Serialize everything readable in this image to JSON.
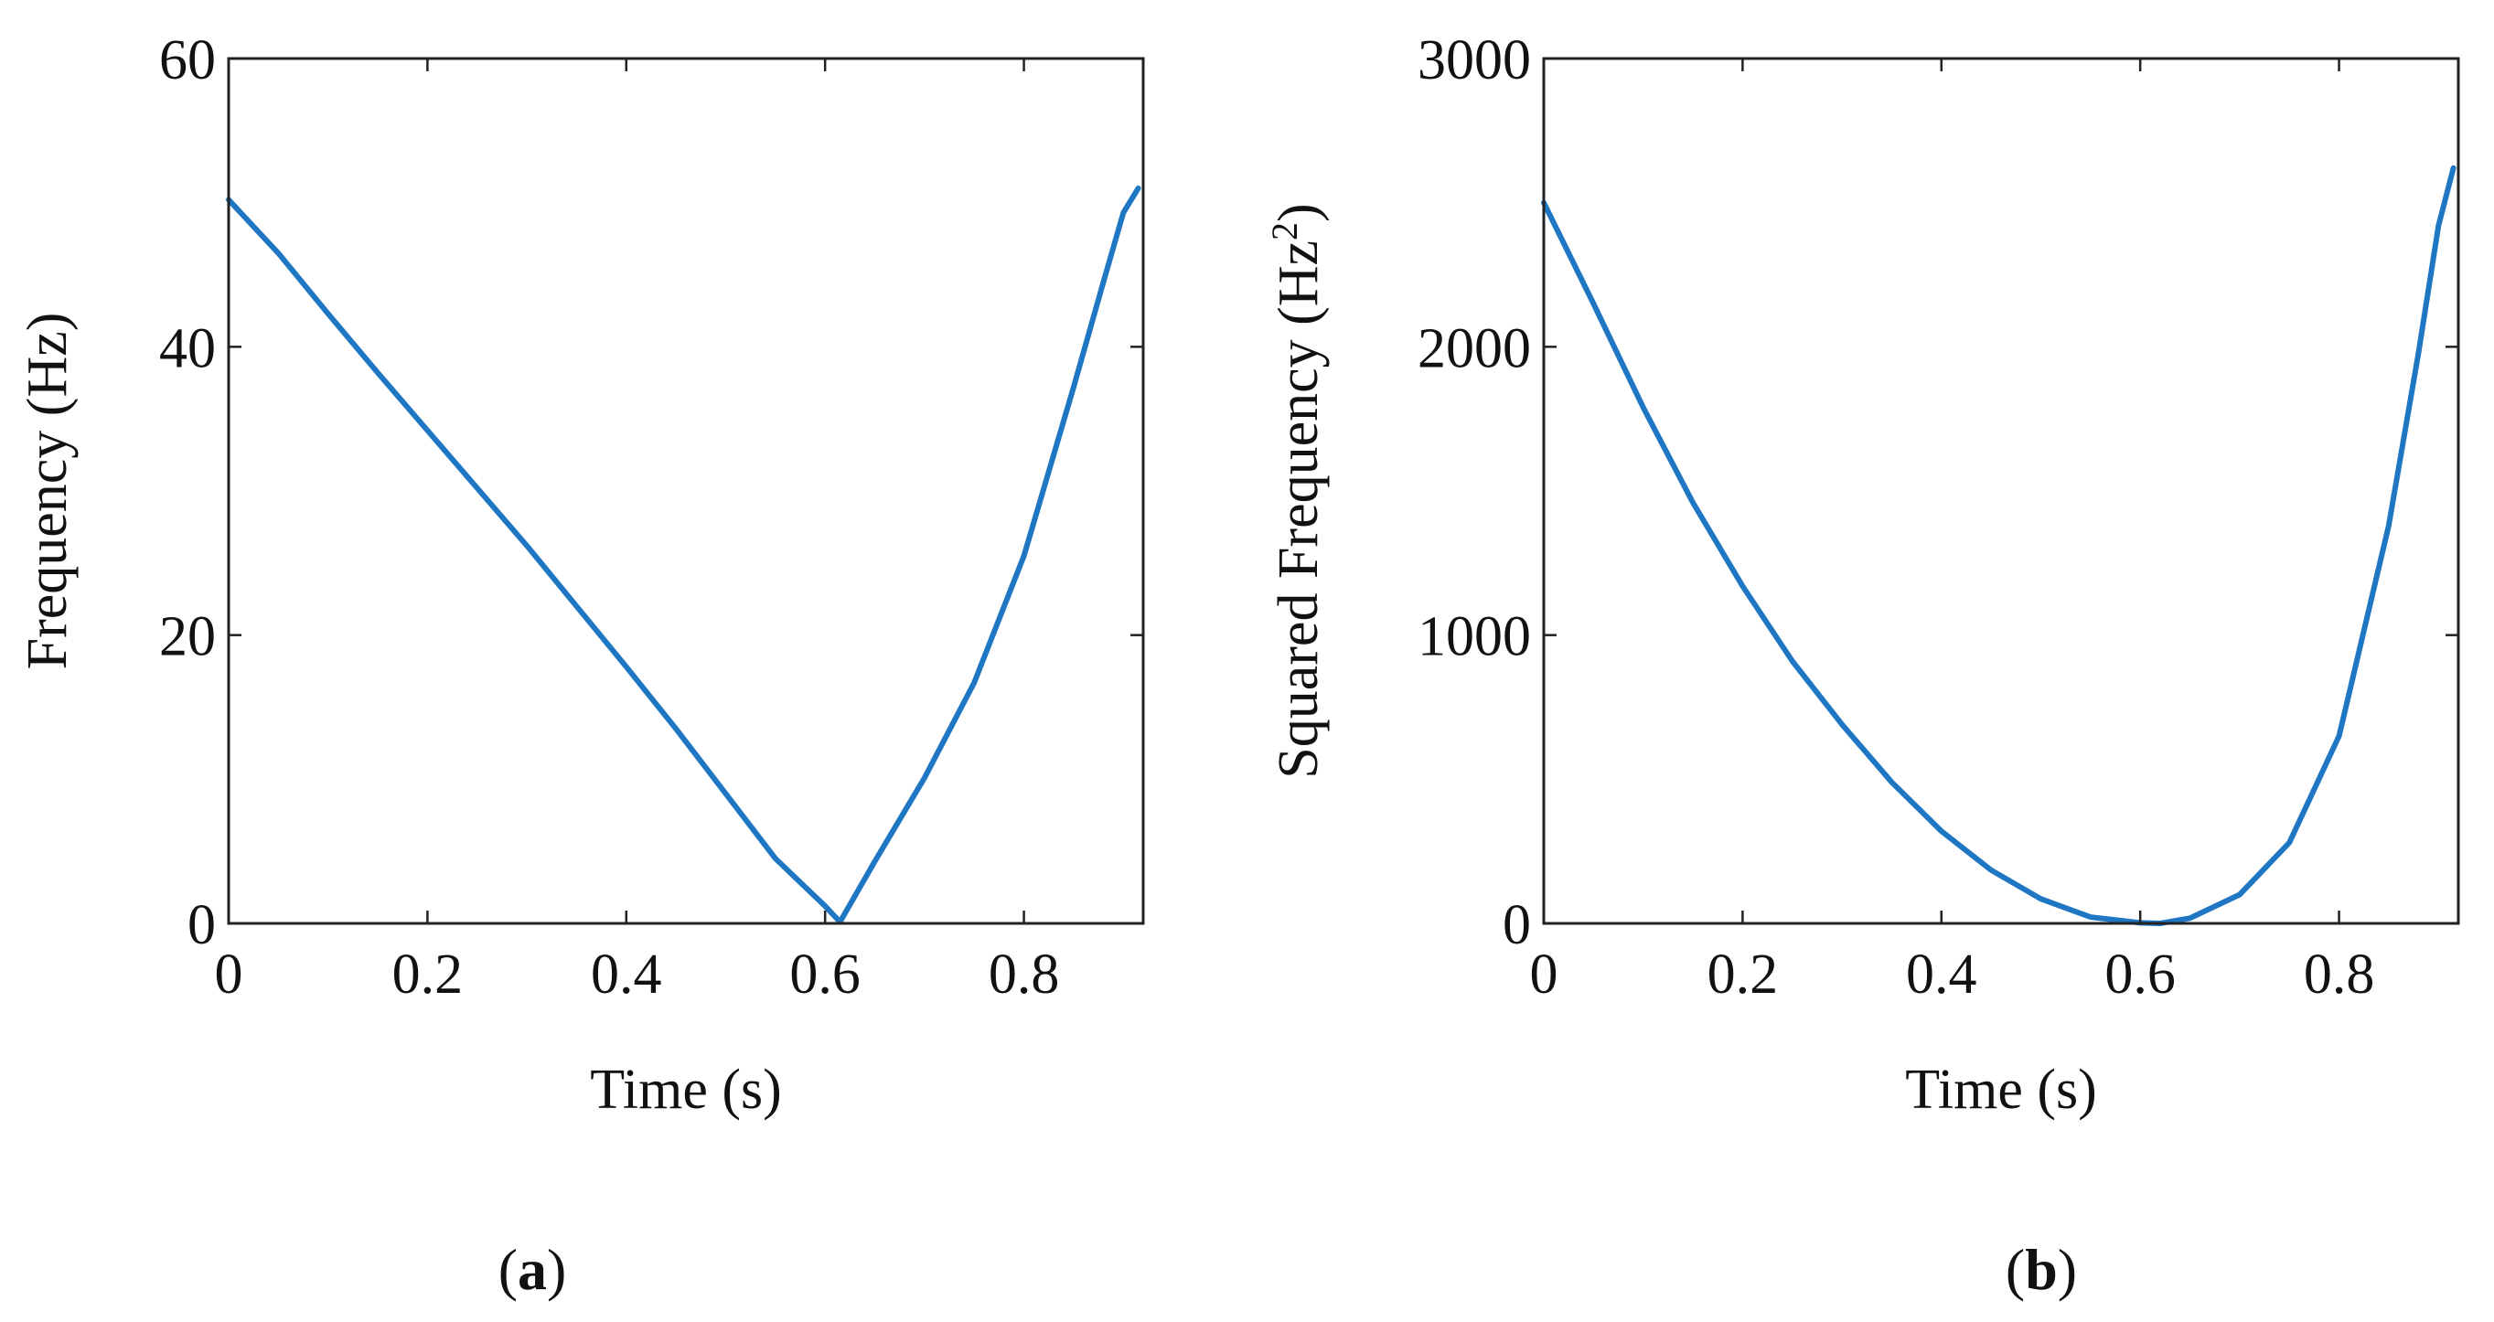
{
  "chart_data": [
    {
      "type": "line",
      "panel_label": {
        "open": "(",
        "letter": "a",
        "close": ")"
      },
      "xlabel": "Time (s)",
      "ylabel": "Frequency (Hz)",
      "xlim": [
        0,
        0.92
      ],
      "ylim": [
        0,
        60
      ],
      "x_ticks": [
        0,
        0.2,
        0.4,
        0.6,
        0.8
      ],
      "x_tick_labels": [
        "0",
        "0.2",
        "0.4",
        "0.6",
        "0.8"
      ],
      "y_ticks": [
        0,
        20,
        40,
        60
      ],
      "y_tick_labels": [
        "0",
        "20",
        "40",
        "60"
      ],
      "grid": false,
      "series": [
        {
          "name": "frequency",
          "color": "#1f77c4",
          "x": [
            0,
            0.05,
            0.1,
            0.15,
            0.2,
            0.25,
            0.3,
            0.35,
            0.4,
            0.45,
            0.5,
            0.55,
            0.6,
            0.615,
            0.65,
            0.7,
            0.75,
            0.8,
            0.85,
            0.88,
            0.9,
            0.915
          ],
          "y": [
            50.2,
            46.5,
            42.3,
            38.2,
            34.2,
            30.2,
            26.2,
            22.0,
            17.8,
            13.5,
            9.0,
            4.5,
            1.2,
            0.1,
            4.3,
            10.1,
            16.7,
            25.5,
            37.2,
            44.5,
            49.3,
            51.0
          ]
        }
      ]
    },
    {
      "type": "line",
      "panel_label": {
        "open": "(",
        "letter": "b",
        "close": ")"
      },
      "xlabel": "Time (s)",
      "ylabel": "Squared  Frequency (Hz",
      "ylabel_superscript": "2",
      "ylabel_suffix": ")",
      "xlim": [
        0,
        0.92
      ],
      "ylim": [
        0,
        3000
      ],
      "x_ticks": [
        0,
        0.2,
        0.4,
        0.6,
        0.8
      ],
      "x_tick_labels": [
        "0",
        "0.2",
        "0.4",
        "0.6",
        "0.8"
      ],
      "y_ticks": [
        0,
        1000,
        2000,
        3000
      ],
      "y_tick_labels": [
        "0",
        "1000",
        "2000",
        "3000"
      ],
      "grid": false,
      "series": [
        {
          "name": "squared frequency",
          "color": "#1f77c4",
          "x": [
            0,
            0.05,
            0.1,
            0.15,
            0.2,
            0.25,
            0.3,
            0.35,
            0.4,
            0.45,
            0.5,
            0.55,
            0.6,
            0.62,
            0.65,
            0.7,
            0.75,
            0.8,
            0.85,
            0.88,
            0.9,
            0.915
          ],
          "y": [
            2500,
            2150,
            1790,
            1460,
            1170,
            910,
            690,
            490,
            320,
            185,
            85,
            22,
            2,
            0,
            18,
            100,
            280,
            650,
            1380,
            1980,
            2420,
            2620
          ]
        }
      ]
    }
  ]
}
